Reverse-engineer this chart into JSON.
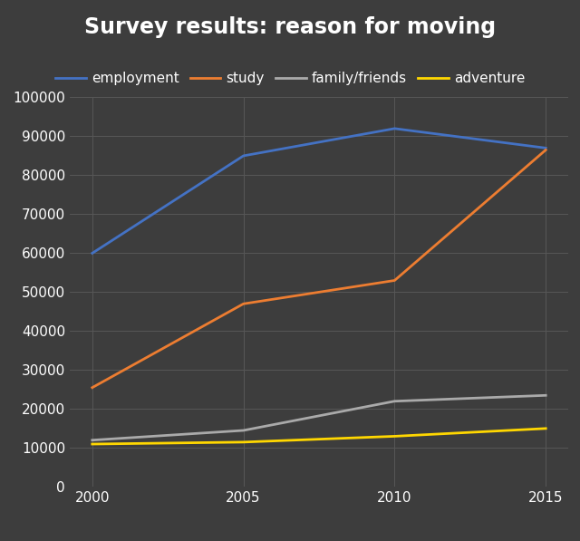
{
  "title": "Survey results: reason for moving",
  "x_values": [
    2000,
    2005,
    2010,
    2015
  ],
  "series": {
    "employment": {
      "values": [
        60000,
        85000,
        92000,
        87000
      ],
      "color": "#4472C4",
      "label": "employment"
    },
    "study": {
      "values": [
        25500,
        47000,
        53000,
        86500
      ],
      "color": "#ED7D31",
      "label": "study"
    },
    "family_friends": {
      "values": [
        12000,
        14500,
        22000,
        23500
      ],
      "color": "#AAAAAA",
      "label": "family/friends"
    },
    "adventure": {
      "values": [
        11000,
        11500,
        13000,
        15000
      ],
      "color": "#FFD700",
      "label": "adventure"
    }
  },
  "ylim": [
    0,
    100000
  ],
  "yticks": [
    0,
    10000,
    20000,
    30000,
    40000,
    50000,
    60000,
    70000,
    80000,
    90000,
    100000
  ],
  "xticks": [
    2000,
    2005,
    2010,
    2015
  ],
  "background_color": "#3D3D3D",
  "axes_background_color": "#3D3D3D",
  "grid_color": "#575757",
  "text_color": "#FFFFFF",
  "line_width": 2.0,
  "title_fontsize": 17,
  "tick_fontsize": 11,
  "legend_fontsize": 11
}
